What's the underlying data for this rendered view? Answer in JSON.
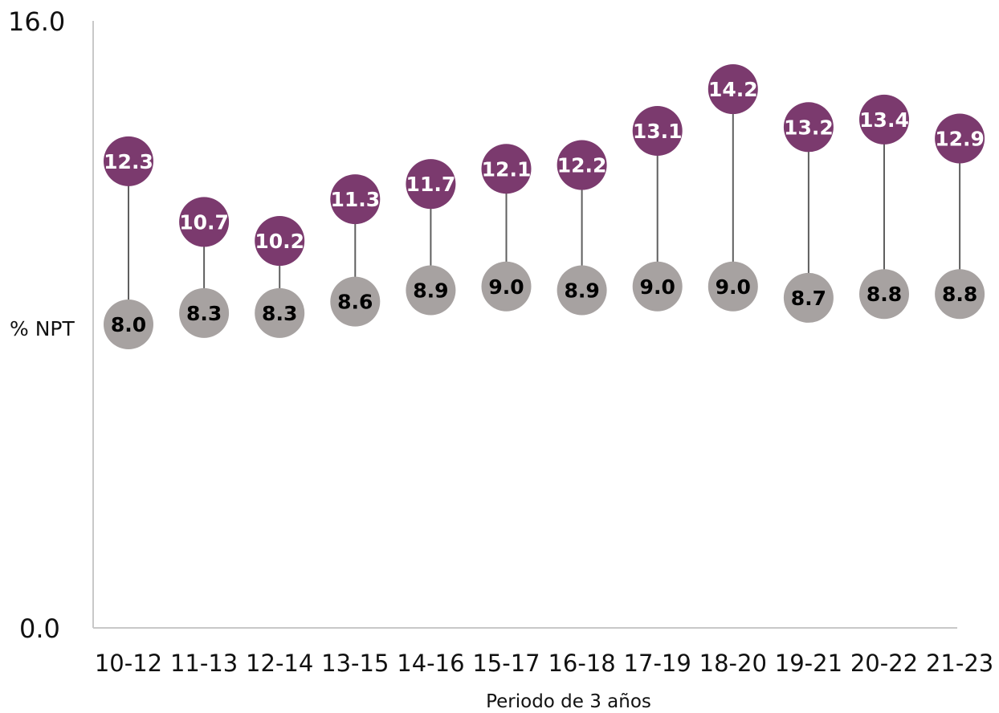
{
  "chart_data": {
    "type": "scatter",
    "title": "",
    "ylabel": "% NPT",
    "xlabel": "Periodo de 3 años",
    "ylim": [
      0.0,
      16.0
    ],
    "y_ticks": [
      "0.0",
      "16.0"
    ],
    "categories": [
      "10-12",
      "11-13",
      "12-14",
      "13-15",
      "14-16",
      "15-17",
      "16-18",
      "17-19",
      "18-20",
      "19-21",
      "20-22",
      "21-23"
    ],
    "series": [
      {
        "values": [
          12.3,
          10.7,
          10.2,
          11.3,
          11.7,
          12.1,
          12.2,
          13.1,
          14.2,
          13.2,
          13.4,
          12.9
        ],
        "labels": [
          "12.3",
          "10.7",
          "10.2",
          "11.3",
          "11.7",
          "12.1",
          "12.2",
          "13.1",
          "14.2",
          "13.2",
          "13.4",
          "12.9"
        ],
        "color": "#7b3a6e",
        "label_color": "#ffffff"
      },
      {
        "values": [
          8.0,
          8.3,
          8.3,
          8.6,
          8.9,
          9.0,
          8.9,
          9.0,
          9.0,
          8.7,
          8.8,
          8.8
        ],
        "labels": [
          "8.0",
          "8.3",
          "8.3",
          "8.6",
          "8.9",
          "9.0",
          "8.9",
          "9.0",
          "9.0",
          "8.7",
          "8.8",
          "8.8"
        ],
        "color": "#a7a2a1",
        "label_color": "#000000"
      }
    ],
    "connector_color": "#5f5f5f",
    "grid": false,
    "legend": "none"
  }
}
